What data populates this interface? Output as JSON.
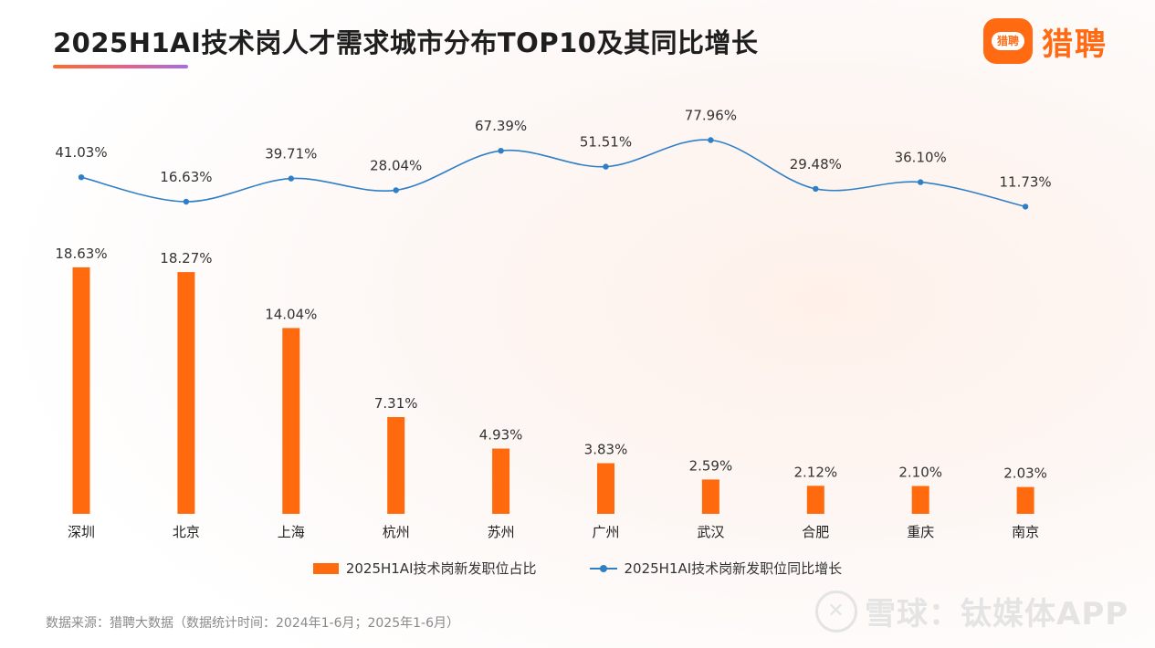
{
  "header": {
    "title": "2025H1AI技术岗人才需求城市分布TOP10及其同比增长",
    "logo_mark": "猎聘",
    "logo_text": "猎聘"
  },
  "colors": {
    "bar": "#ff6a0e",
    "line": "#2f7fc7",
    "brand": "#ff6a13"
  },
  "chart_data": {
    "type": "bar",
    "categories": [
      "深圳",
      "北京",
      "上海",
      "杭州",
      "苏州",
      "广州",
      "武汉",
      "合肥",
      "重庆",
      "南京"
    ],
    "series": [
      {
        "name": "2025H1AI技术岗新发职位占比",
        "type": "bar",
        "values": [
          18.63,
          18.27,
          14.04,
          7.31,
          4.93,
          3.83,
          2.59,
          2.12,
          2.1,
          2.03
        ],
        "labels": [
          "18.63%",
          "18.27%",
          "14.04%",
          "7.31%",
          "4.93%",
          "3.83%",
          "2.59%",
          "2.12%",
          "2.10%",
          "2.03%"
        ]
      },
      {
        "name": "2025H1AI技术岗新发职位同比增长",
        "type": "line",
        "values": [
          41.03,
          16.63,
          39.71,
          28.04,
          67.39,
          51.51,
          77.96,
          29.48,
          36.1,
          11.73
        ],
        "labels": [
          "41.03%",
          "16.63%",
          "39.71%",
          "28.04%",
          "67.39%",
          "51.51%",
          "77.96%",
          "29.48%",
          "36.10%",
          "11.73%"
        ]
      }
    ],
    "legend_position": "bottom",
    "grid": false
  },
  "legend": {
    "bar_label": "2025H1AI技术岗新发职位占比",
    "line_label": "2025H1AI技术岗新发职位同比增长"
  },
  "footer": {
    "source": "数据来源：猎聘大数据（数据统计时间：2024年1-6月；2025年1-6月）"
  },
  "watermark": {
    "icon": "snowball-icon",
    "text": "雪球：钛媒体APP"
  }
}
